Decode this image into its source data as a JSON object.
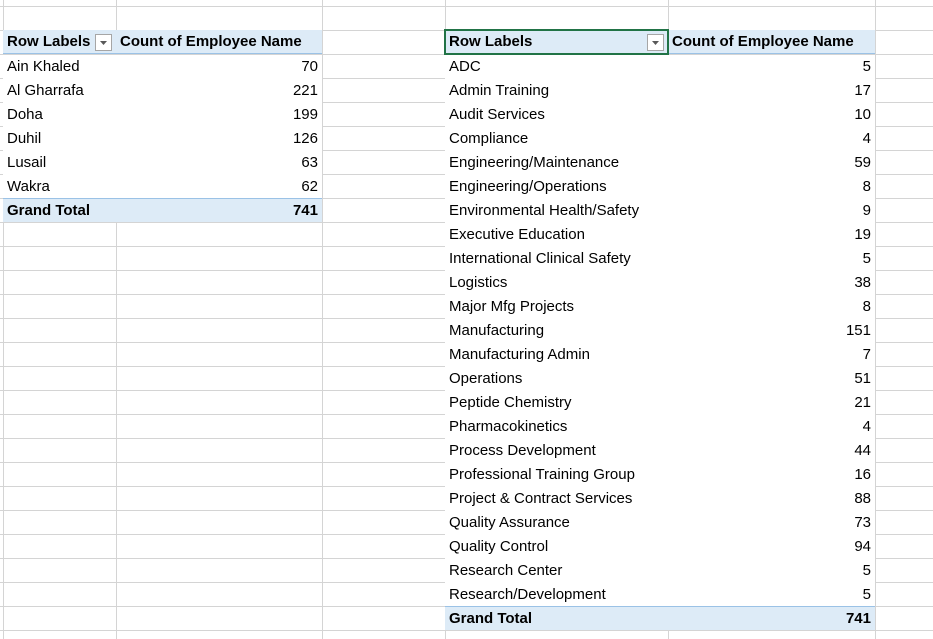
{
  "left_table": {
    "header": [
      "Row Labels",
      "Count of Employee Name"
    ],
    "rows": [
      [
        "Ain Khaled",
        70
      ],
      [
        "Al Gharrafa",
        221
      ],
      [
        "Doha",
        199
      ],
      [
        "Duhil",
        126
      ],
      [
        "Lusail",
        63
      ],
      [
        "Wakra",
        62
      ]
    ],
    "total": [
      "Grand Total",
      741
    ]
  },
  "right_table": {
    "header": [
      "Row Labels",
      "Count of Employee Name"
    ],
    "rows": [
      [
        "ADC",
        5
      ],
      [
        "Admin Training",
        17
      ],
      [
        "Audit Services",
        10
      ],
      [
        "Compliance",
        4
      ],
      [
        "Engineering/Maintenance",
        59
      ],
      [
        "Engineering/Operations",
        8
      ],
      [
        "Environmental Health/Safety",
        9
      ],
      [
        "Executive Education",
        19
      ],
      [
        "International Clinical Safety",
        5
      ],
      [
        "Logistics",
        38
      ],
      [
        "Major Mfg Projects",
        8
      ],
      [
        "Manufacturing",
        151
      ],
      [
        "Manufacturing Admin",
        7
      ],
      [
        "Operations",
        51
      ],
      [
        "Peptide Chemistry",
        21
      ],
      [
        "Pharmacokinetics",
        4
      ],
      [
        "Process Development",
        44
      ],
      [
        "Professional Training Group",
        16
      ],
      [
        "Project & Contract Services",
        88
      ],
      [
        "Quality Assurance",
        73
      ],
      [
        "Quality Control",
        94
      ],
      [
        "Research Center",
        5
      ],
      [
        "Research/Development",
        5
      ]
    ],
    "total": [
      "Grand Total",
      741
    ]
  }
}
